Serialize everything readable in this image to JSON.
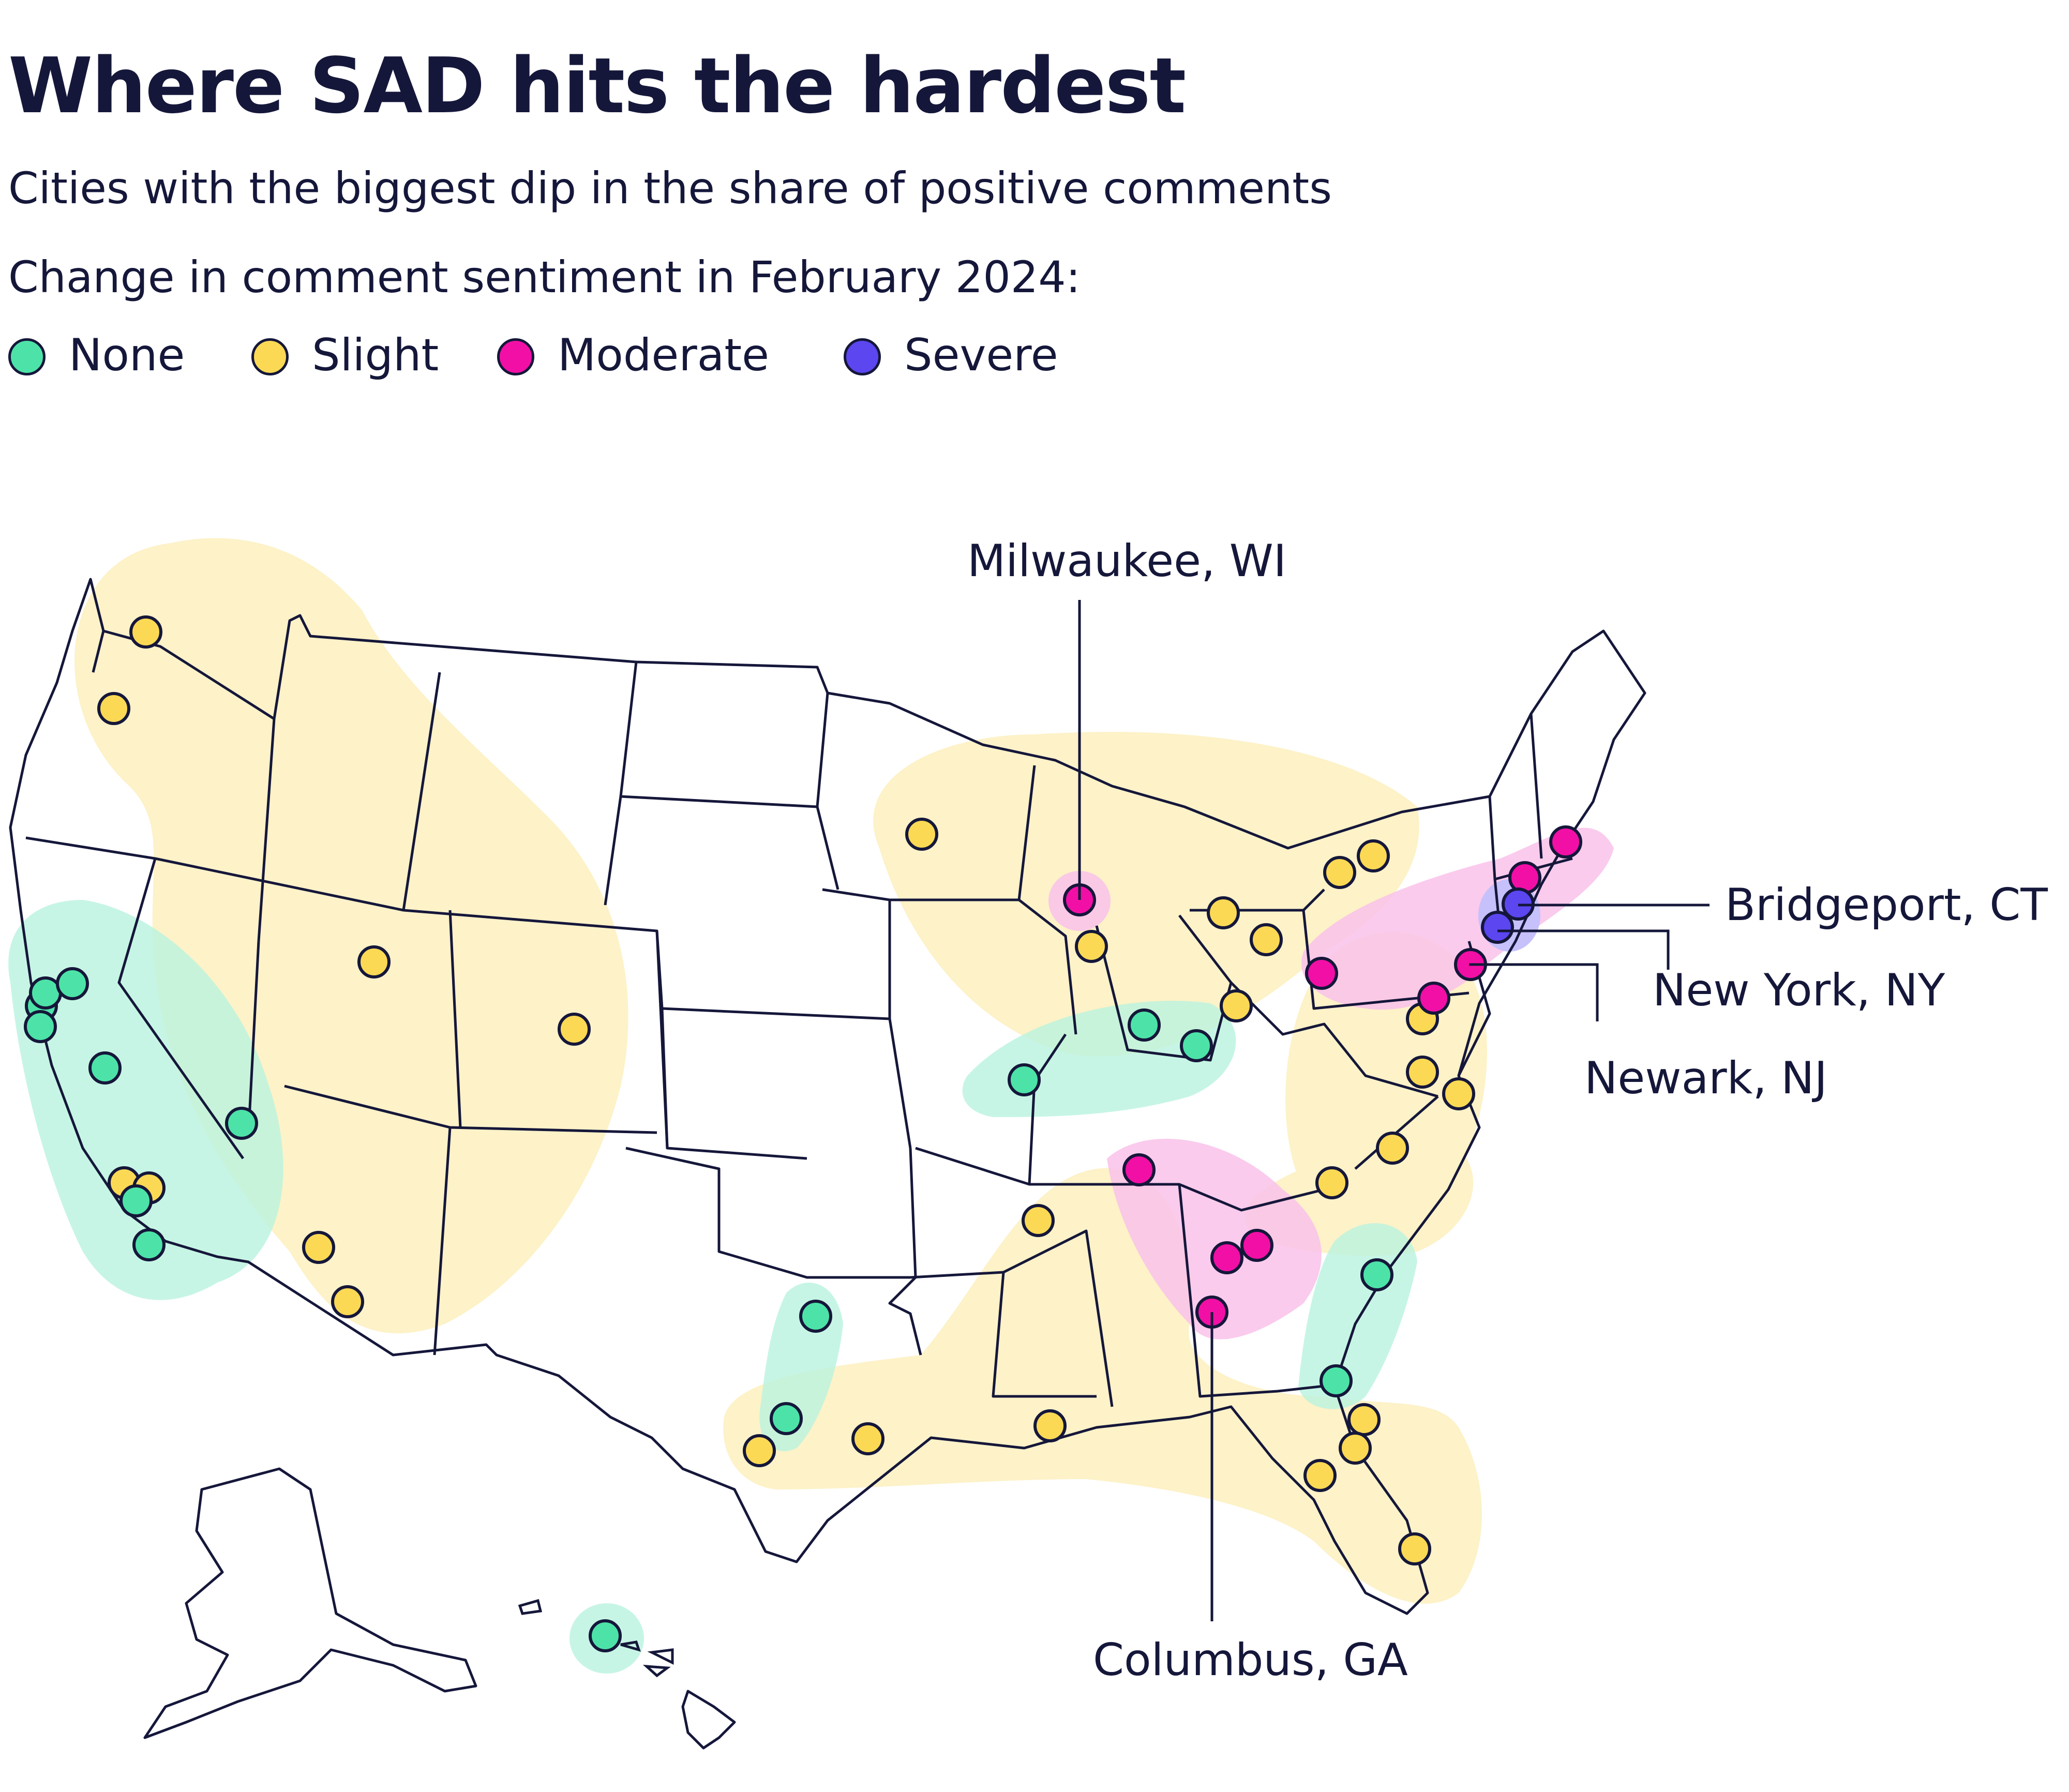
{
  "title": "Where SAD hits the hardest",
  "subtitle": "Cities with the biggest dip in the share of positive comments",
  "legend": {
    "title": "Change in comment sentiment in February 2024:",
    "items": [
      {
        "label": "None",
        "color": "#4de3a8"
      },
      {
        "label": "Slight",
        "color": "#fbd955"
      },
      {
        "label": "Moderate",
        "color": "#f20fa6"
      },
      {
        "label": "Severe",
        "color": "#5b46f0"
      }
    ]
  },
  "colors": {
    "outline": "#15173a",
    "none_halo": "#b9f3df",
    "slight_halo": "#fdf2c8",
    "moderate_halo": "#f9c2ea",
    "severe_halo": "#c6c0fb"
  },
  "callouts": {
    "milwaukee": "Milwaukee, WI",
    "bridgeport": "Bridgeport, CT",
    "new_york": "New York, NY",
    "newark": "Newark, NJ",
    "columbus": "Columbus, GA"
  },
  "cities": [
    {
      "name": "Milwaukee, WI",
      "level": "Moderate"
    },
    {
      "name": "Bridgeport, CT",
      "level": "Severe"
    },
    {
      "name": "New York, NY",
      "level": "Severe"
    },
    {
      "name": "Newark, NJ",
      "level": "Moderate"
    },
    {
      "name": "Columbus, GA",
      "level": "Moderate"
    }
  ]
}
